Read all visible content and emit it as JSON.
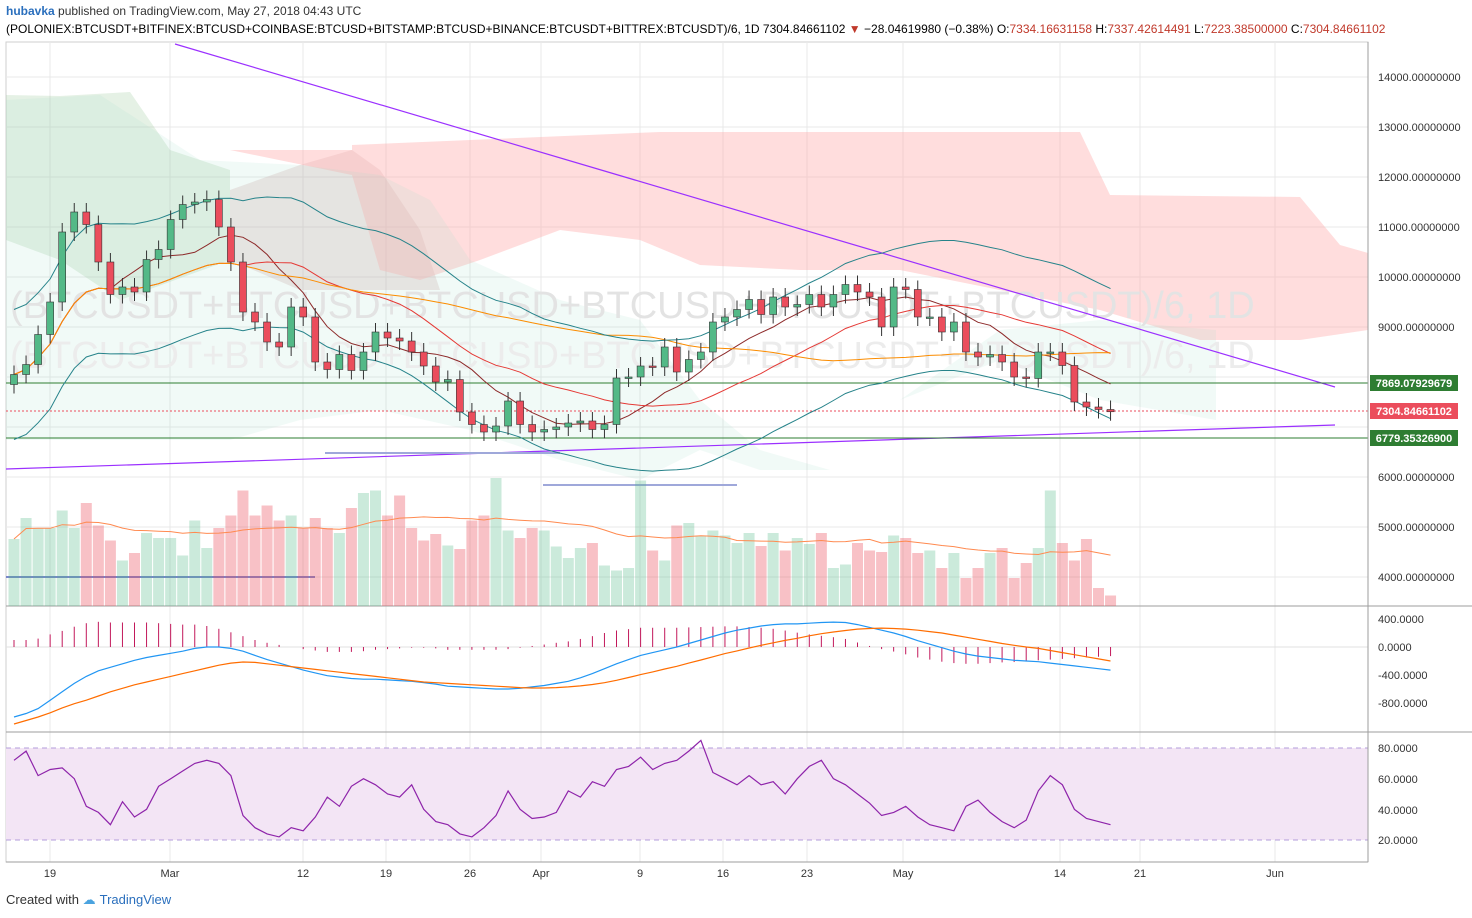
{
  "header": {
    "author": "hubavka",
    "published": "published on TradingView.com, May 27, 2018 04:43 UTC",
    "symbol": "(POLONIEX:BTCUSDT+BITFINEX:BTCUSD+COINBASE:BTCUSD+BITSTAMP:BTCUSD+BINANCE:BTCUSDT+BITTREX:BTCUSDT)/6, 1D",
    "last": "7304.84661102",
    "change": "−28.04619980 (−0.38%)",
    "o_label": "O:",
    "o": "7334.16631158",
    "h_label": "H:",
    "h": "7337.42614491",
    "l_label": "L:",
    "l": "7223.38500000",
    "c_label": "C:",
    "c": "7304.84661102"
  },
  "footer": {
    "created": "Created with",
    "brand": "TradingView"
  },
  "colors": {
    "up": "#53b987",
    "down": "#eb4d5c",
    "trend": "#9b30ff",
    "grid": "#e8e8e8",
    "macd": "#2196f3",
    "signal": "#ff6d00",
    "rsi": "#8e24aa",
    "rsiband": "#f3e5f5"
  },
  "watermark": "(BTCUSDT+BTCUSD+BTCUSD+BTCUSD+BTCUSDT+BTCUSDT)/6, 1D",
  "chart_data": {
    "type": "candlestick",
    "title": "(POLONIEX:BTCUSDT+BITFINEX:BTCUSD+COINBASE:BTCUSD+BITSTAMP:BTCUSD+BINANCE:BTCUSDT+BITTREX:BTCUSDT)/6, 1D",
    "x_ticks": [
      "19",
      "Mar",
      "12",
      "19",
      "26",
      "Apr",
      "9",
      "16",
      "23",
      "May",
      "14",
      "21",
      "Jun"
    ],
    "price_axis": [
      "14000.00000000",
      "13000.00000000",
      "12000.00000000",
      "11000.00000000",
      "10000.00000000",
      "9000.00000000",
      "6000.00000000",
      "5000.00000000",
      "4000.00000000"
    ],
    "price_labels": [
      {
        "value": "7869.07929679",
        "color": "#2e7d32"
      },
      {
        "value": "7304.84661102",
        "color": "#eb4d5c"
      },
      {
        "value": "6779.35326900",
        "color": "#2e7d32"
      }
    ],
    "close": [
      8050,
      8250,
      8850,
      9500,
      10900,
      11300,
      11050,
      10300,
      9650,
      9800,
      9700,
      10350,
      10550,
      11150,
      11450,
      11500,
      11550,
      11000,
      10300,
      9300,
      9100,
      8700,
      8600,
      9400,
      9200,
      8300,
      8150,
      8450,
      8130,
      8500,
      8900,
      8780,
      8720,
      8500,
      8220,
      7900,
      7950,
      7300,
      7050,
      6900,
      7020,
      7520,
      7050,
      6900,
      6950,
      7000,
      7080,
      7120,
      6950,
      7050,
      7980,
      8000,
      8220,
      8200,
      8600,
      8100,
      8350,
      8500,
      9100,
      9200,
      9350,
      9550,
      9250,
      9600,
      9400,
      9450,
      9650,
      9400,
      9650,
      9850,
      9700,
      9600,
      9000,
      9800,
      9750,
      9200,
      9200,
      8900,
      9100,
      8500,
      8400,
      8450,
      8300,
      8000,
      7970,
      8500,
      8500,
      8230,
      7500,
      7400,
      7350,
      7305
    ],
    "volume": [
      4780,
      5200,
      5000,
      5000,
      5350,
      5000,
      5500,
      5050,
      4750,
      4350,
      4500,
      4900,
      4800,
      4800,
      4450,
      5150,
      4600,
      5000,
      5250,
      5750,
      5250,
      5450,
      5150,
      5250,
      5000,
      5200,
      5000,
      4900,
      5400,
      5700,
      5750,
      5250,
      5650,
      5000,
      4750,
      4880,
      4650,
      4580,
      5150,
      5250,
      6000,
      4950,
      4800,
      5000,
      4950,
      4630,
      4400,
      4600,
      4700,
      4250,
      4150,
      4200,
      5950,
      4550,
      4350,
      5050,
      5100,
      4850,
      4950,
      4850,
      4700,
      4900,
      4640,
      4900,
      4550,
      4800,
      4680,
      4900,
      4200,
      4270,
      4700,
      4550,
      4520,
      4850,
      4800,
      4500,
      4550,
      4200,
      4500,
      4000,
      4200,
      4500,
      4600,
      4000,
      4300,
      4600,
      5750,
      4700,
      4350,
      4780,
      3800,
      3650
    ],
    "macd": [
      -1000,
      -950,
      -880,
      -760,
      -640,
      -520,
      -420,
      -340,
      -290,
      -240,
      -190,
      -150,
      -120,
      -90,
      -60,
      -20,
      0,
      0,
      -20,
      -60,
      -120,
      -180,
      -230,
      -280,
      -330,
      -370,
      -410,
      -430,
      -450,
      -460,
      -460,
      -470,
      -480,
      -490,
      -510,
      -530,
      -560,
      -570,
      -580,
      -590,
      -600,
      -600,
      -590,
      -570,
      -550,
      -520,
      -490,
      -440,
      -380,
      -310,
      -240,
      -180,
      -120,
      -80,
      -40,
      0,
      50,
      100,
      150,
      200,
      240,
      270,
      300,
      320,
      330,
      330,
      340,
      350,
      355,
      350,
      320,
      280,
      240,
      200,
      150,
      90,
      40,
      -10,
      -60,
      -100,
      -130,
      -150,
      -170,
      -190,
      -200,
      -210,
      -230,
      -250,
      -270,
      -290,
      -310,
      -330
    ],
    "macd_signal": [
      -1100,
      -1050,
      -1000,
      -940,
      -870,
      -810,
      -760,
      -700,
      -640,
      -590,
      -540,
      -500,
      -460,
      -420,
      -380,
      -340,
      -300,
      -260,
      -230,
      -215,
      -220,
      -240,
      -260,
      -280,
      -300,
      -320,
      -340,
      -360,
      -380,
      -400,
      -420,
      -440,
      -460,
      -480,
      -500,
      -510,
      -520,
      -530,
      -540,
      -550,
      -560,
      -570,
      -580,
      -585,
      -585,
      -580,
      -570,
      -555,
      -535,
      -510,
      -475,
      -435,
      -395,
      -355,
      -315,
      -275,
      -230,
      -185,
      -140,
      -95,
      -55,
      -15,
      25,
      60,
      95,
      125,
      160,
      190,
      215,
      235,
      255,
      265,
      270,
      265,
      255,
      240,
      220,
      200,
      170,
      140,
      110,
      80,
      50,
      25,
      0,
      -20,
      -50,
      -80,
      -110,
      -140,
      -170,
      -200
    ],
    "rsi": [
      72,
      78,
      62,
      66,
      67,
      60,
      42,
      38,
      30,
      45,
      35,
      40,
      55,
      60,
      65,
      70,
      72,
      70,
      62,
      36,
      28,
      24,
      22,
      28,
      26,
      35,
      48,
      42,
      55,
      60,
      56,
      50,
      48,
      56,
      40,
      32,
      30,
      24,
      22,
      28,
      36,
      52,
      40,
      34,
      35,
      38,
      52,
      48,
      58,
      55,
      66,
      68,
      74,
      66,
      70,
      72,
      78,
      85,
      64,
      60,
      56,
      62,
      56,
      58,
      50,
      60,
      68,
      72,
      60,
      56,
      50,
      44,
      36,
      38,
      42,
      35,
      30,
      28,
      26,
      42,
      46,
      38,
      32,
      28,
      33,
      52,
      62,
      56,
      40,
      34,
      32,
      30
    ],
    "rsi_axis": [
      "80.0000",
      "60.0000",
      "40.0000",
      "20.0000"
    ],
    "macd_axis": [
      "400.0000",
      "0.0000",
      "-400.0000",
      "-800.0000"
    ]
  }
}
